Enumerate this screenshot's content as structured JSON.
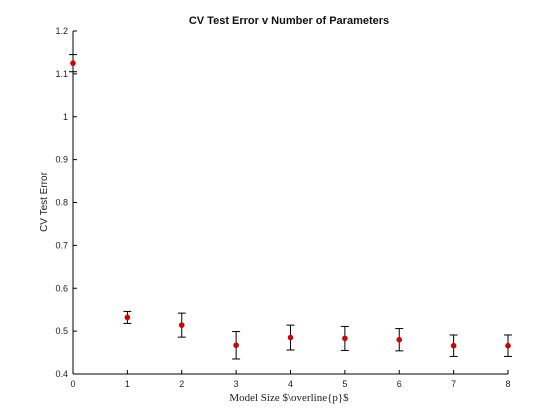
{
  "chart_data": {
    "type": "scatter",
    "title": "CV Test Error v Number of Parameters",
    "xlabel": "Model Size $\\overline{p}$",
    "ylabel": "CV Test Error",
    "xlim": [
      0,
      8
    ],
    "ylim": [
      0.4,
      1.2
    ],
    "xticks": [
      0,
      1,
      2,
      3,
      4,
      5,
      6,
      7,
      8
    ],
    "yticks": [
      0.4,
      0.5,
      0.6,
      0.7,
      0.8,
      0.9,
      1,
      1.1,
      1.2
    ],
    "grid": false,
    "points": [
      {
        "x": 0,
        "y": 1.125,
        "err": 0.02
      },
      {
        "x": 1,
        "y": 0.532,
        "err": 0.014
      },
      {
        "x": 2,
        "y": 0.514,
        "err": 0.028
      },
      {
        "x": 3,
        "y": 0.467,
        "err": 0.032
      },
      {
        "x": 4,
        "y": 0.485,
        "err": 0.029
      },
      {
        "x": 5,
        "y": 0.483,
        "err": 0.028
      },
      {
        "x": 6,
        "y": 0.48,
        "err": 0.026
      },
      {
        "x": 7,
        "y": 0.466,
        "err": 0.025
      },
      {
        "x": 8,
        "y": 0.466,
        "err": 0.025
      }
    ],
    "marker_color": "#cc0000",
    "errorbar_color": "#000000",
    "axis_color": "#000000"
  }
}
